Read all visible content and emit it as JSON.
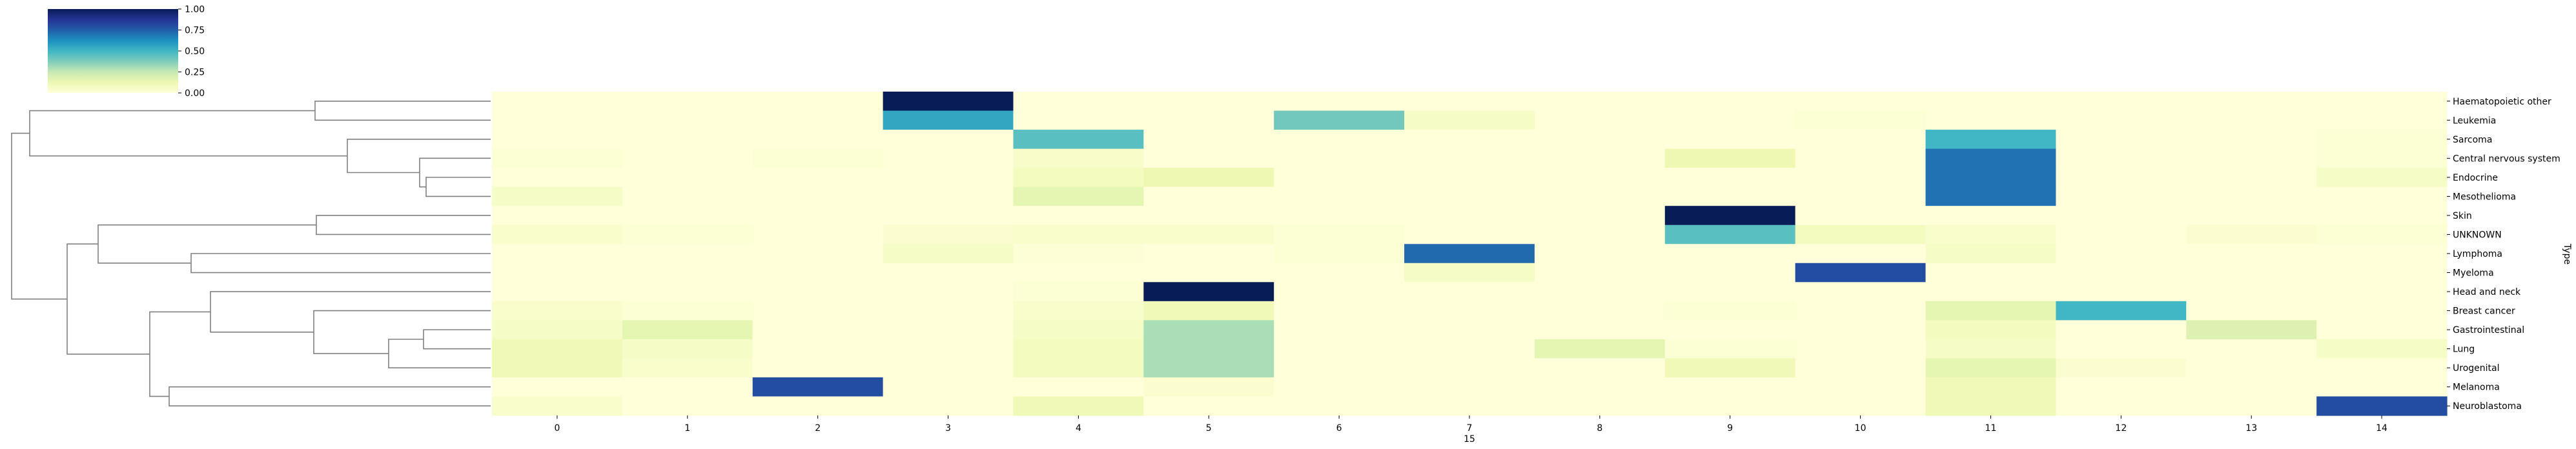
{
  "chart_data": {
    "type": "heatmap",
    "title": "",
    "xlabel": "15",
    "ylabel": "Type",
    "x_categories": [
      "0",
      "1",
      "2",
      "3",
      "4",
      "5",
      "6",
      "7",
      "8",
      "9",
      "10",
      "11",
      "12",
      "13",
      "14"
    ],
    "y_categories": [
      "Haematopoietic other",
      "Leukemia",
      "Sarcoma",
      "Central nervous system",
      "Endocrine",
      "Mesothelioma",
      "Skin",
      "UNKNOWN",
      "Lymphoma",
      "Myeloma",
      "Head and neck",
      "Breast cancer",
      "Gastrointestinal",
      "Lung",
      "Urogenital",
      "Melanoma",
      "Neuroblastoma"
    ],
    "values": [
      [
        0.0,
        0.0,
        0.0,
        1.0,
        0.0,
        0.0,
        0.0,
        0.0,
        0.0,
        0.0,
        0.0,
        0.0,
        0.0,
        0.0,
        0.0
      ],
      [
        0.0,
        0.0,
        0.0,
        0.55,
        0.0,
        0.0,
        0.4,
        0.06,
        0.0,
        0.0,
        0.02,
        0.0,
        0.0,
        0.0,
        0.0
      ],
      [
        0.0,
        0.0,
        0.0,
        0.0,
        0.45,
        0.0,
        0.0,
        0.0,
        0.0,
        0.0,
        0.0,
        0.5,
        0.0,
        0.0,
        0.02
      ],
      [
        0.02,
        0.0,
        0.02,
        0.0,
        0.05,
        0.0,
        0.0,
        0.0,
        0.0,
        0.12,
        0.0,
        0.7,
        0.0,
        0.0,
        0.02
      ],
      [
        0.0,
        0.0,
        0.0,
        0.0,
        0.08,
        0.12,
        0.0,
        0.0,
        0.0,
        0.0,
        0.0,
        0.7,
        0.0,
        0.0,
        0.06
      ],
      [
        0.06,
        0.0,
        0.0,
        0.0,
        0.15,
        0.0,
        0.0,
        0.0,
        0.0,
        0.0,
        0.0,
        0.7,
        0.0,
        0.0,
        0.0
      ],
      [
        0.0,
        0.0,
        0.0,
        0.0,
        0.0,
        0.0,
        0.0,
        0.0,
        0.0,
        1.0,
        0.0,
        0.0,
        0.0,
        0.0,
        0.0
      ],
      [
        0.04,
        0.02,
        0.0,
        0.03,
        0.04,
        0.04,
        0.02,
        0.0,
        0.0,
        0.45,
        0.08,
        0.04,
        0.0,
        0.03,
        0.02
      ],
      [
        0.0,
        0.0,
        0.0,
        0.06,
        0.01,
        0.0,
        0.02,
        0.72,
        0.0,
        0.0,
        0.0,
        0.06,
        0.0,
        0.0,
        0.0
      ],
      [
        0.0,
        0.0,
        0.0,
        0.0,
        0.0,
        0.0,
        0.0,
        0.06,
        0.0,
        0.0,
        0.8,
        0.0,
        0.0,
        0.0,
        0.0
      ],
      [
        0.0,
        0.0,
        0.0,
        0.0,
        0.02,
        1.0,
        0.0,
        0.0,
        0.0,
        0.0,
        0.0,
        0.0,
        0.0,
        0.0,
        0.0
      ],
      [
        0.04,
        0.02,
        0.0,
        0.0,
        0.04,
        0.1,
        0.0,
        0.0,
        0.0,
        0.02,
        0.0,
        0.15,
        0.5,
        0.0,
        0.0
      ],
      [
        0.06,
        0.15,
        0.0,
        0.0,
        0.06,
        0.3,
        0.0,
        0.0,
        0.0,
        0.0,
        0.0,
        0.08,
        0.0,
        0.18,
        0.0
      ],
      [
        0.1,
        0.06,
        0.0,
        0.0,
        0.08,
        0.3,
        0.0,
        0.0,
        0.15,
        0.02,
        0.0,
        0.06,
        0.0,
        0.0,
        0.06
      ],
      [
        0.1,
        0.04,
        0.0,
        0.0,
        0.08,
        0.3,
        0.0,
        0.0,
        0.0,
        0.1,
        0.0,
        0.15,
        0.03,
        0.0,
        0.0
      ],
      [
        0.0,
        0.0,
        0.8,
        0.0,
        0.0,
        0.03,
        0.0,
        0.0,
        0.0,
        0.0,
        0.0,
        0.1,
        0.0,
        0.0,
        0.0
      ],
      [
        0.04,
        0.0,
        0.0,
        0.0,
        0.1,
        0.0,
        0.0,
        0.0,
        0.0,
        0.0,
        0.0,
        0.1,
        0.0,
        0.0,
        0.8
      ]
    ],
    "vmin": 0.0,
    "vmax": 1.0,
    "colormap": "YlGnBu",
    "colorbar_ticks": [
      "0.00",
      "0.25",
      "0.50",
      "0.75",
      "1.00"
    ],
    "dendrogram": "row",
    "grid": false
  }
}
